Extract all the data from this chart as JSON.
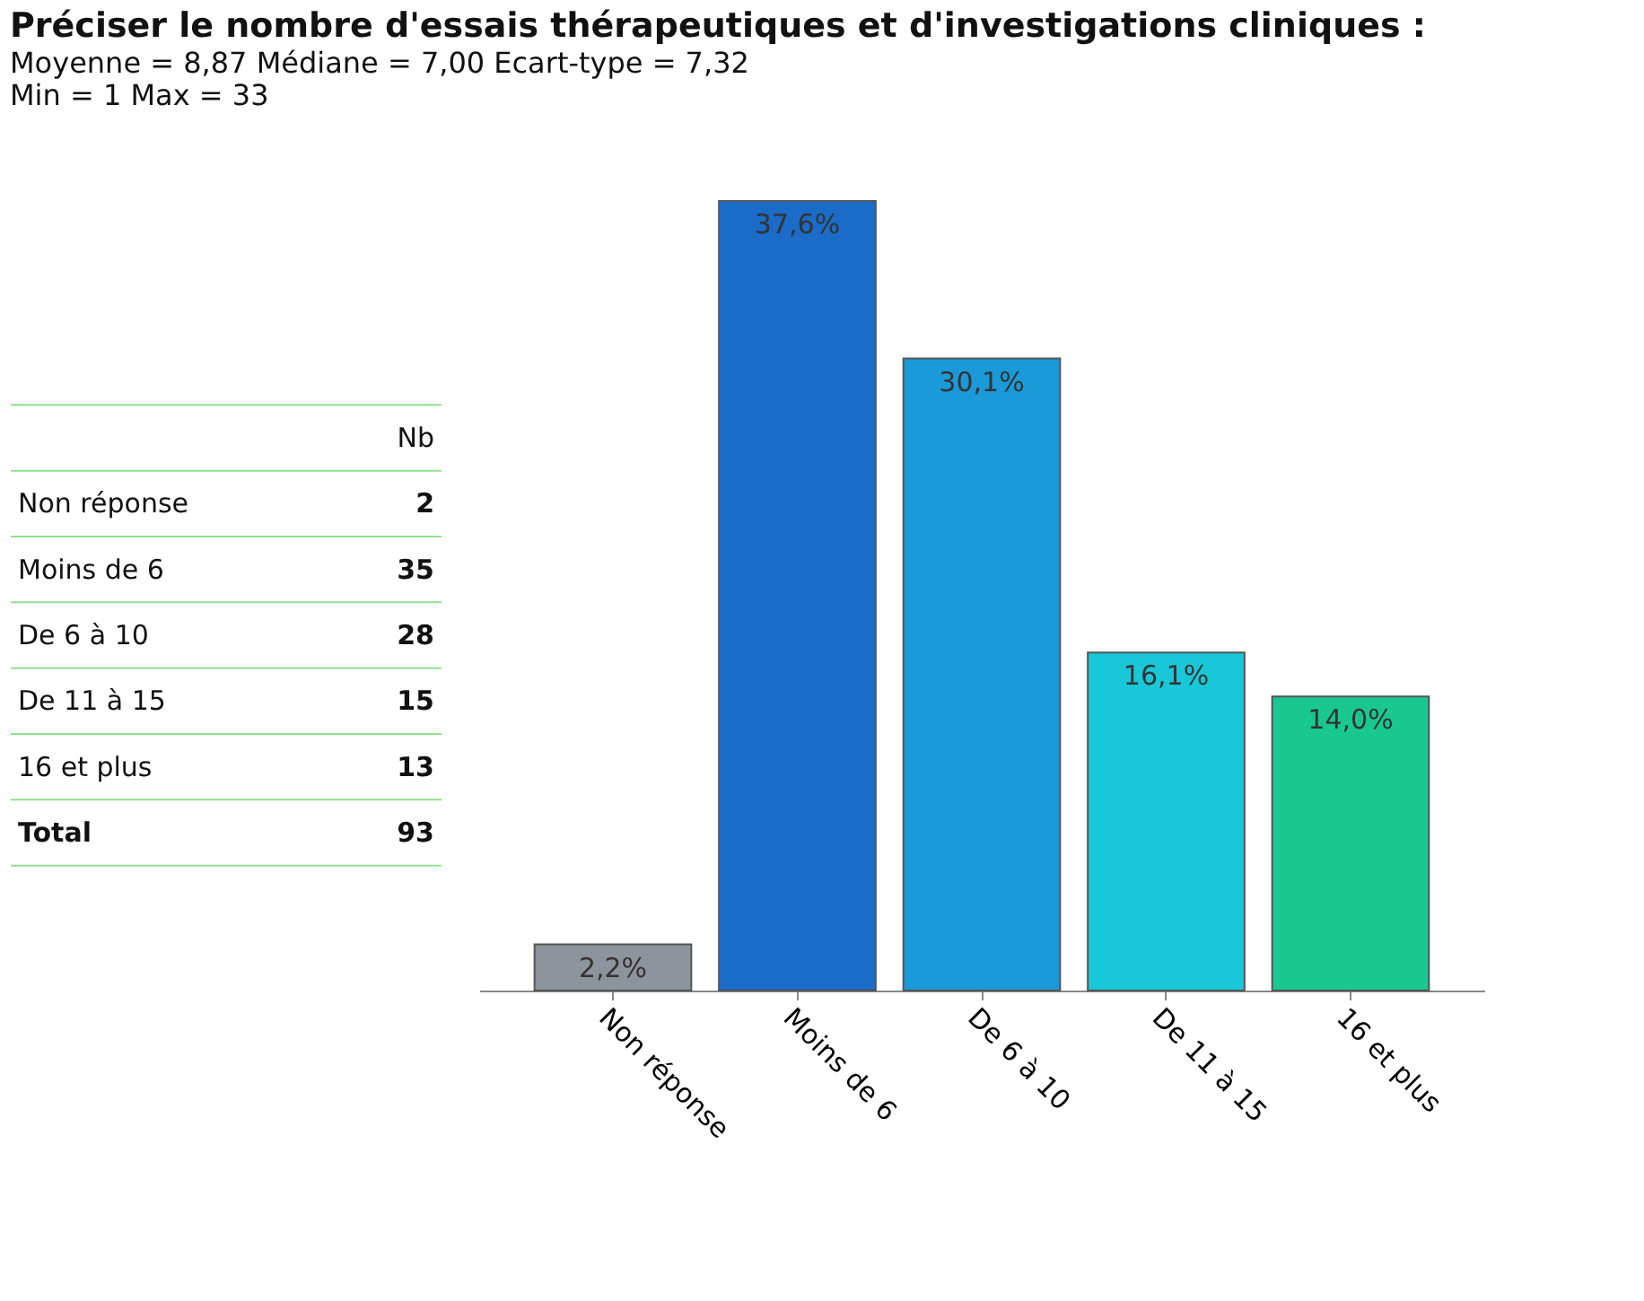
{
  "chart_data": {
    "type": "bar",
    "title": "Préciser le nombre d'essais thérapeutiques et d'investigations cliniques :",
    "subtitle": "Moyenne = 8,87   Médiane = 7,00   Ecart-type = 7,32",
    "annotations": [
      "Min = 1   Max = 33",
      "Nb",
      "Total",
      "93",
      "2",
      "35",
      "28",
      "15",
      "13"
    ],
    "categories": [
      "Non réponse",
      "Moins de 6",
      "De 6 à 10",
      "De 11 à 15",
      "16 et plus"
    ],
    "values": [
      2.2,
      37.6,
      30.1,
      16.1,
      14.0
    ],
    "value_labels": [
      "2,2%",
      "37,6%",
      "30,1%",
      "16,1%",
      "14,0%"
    ],
    "colors": [
      "#8e949b",
      "#1a6cc8",
      "#1a9ad8",
      "#18c8d8",
      "#18c890"
    ],
    "grid": false,
    "legend": false
  }
}
